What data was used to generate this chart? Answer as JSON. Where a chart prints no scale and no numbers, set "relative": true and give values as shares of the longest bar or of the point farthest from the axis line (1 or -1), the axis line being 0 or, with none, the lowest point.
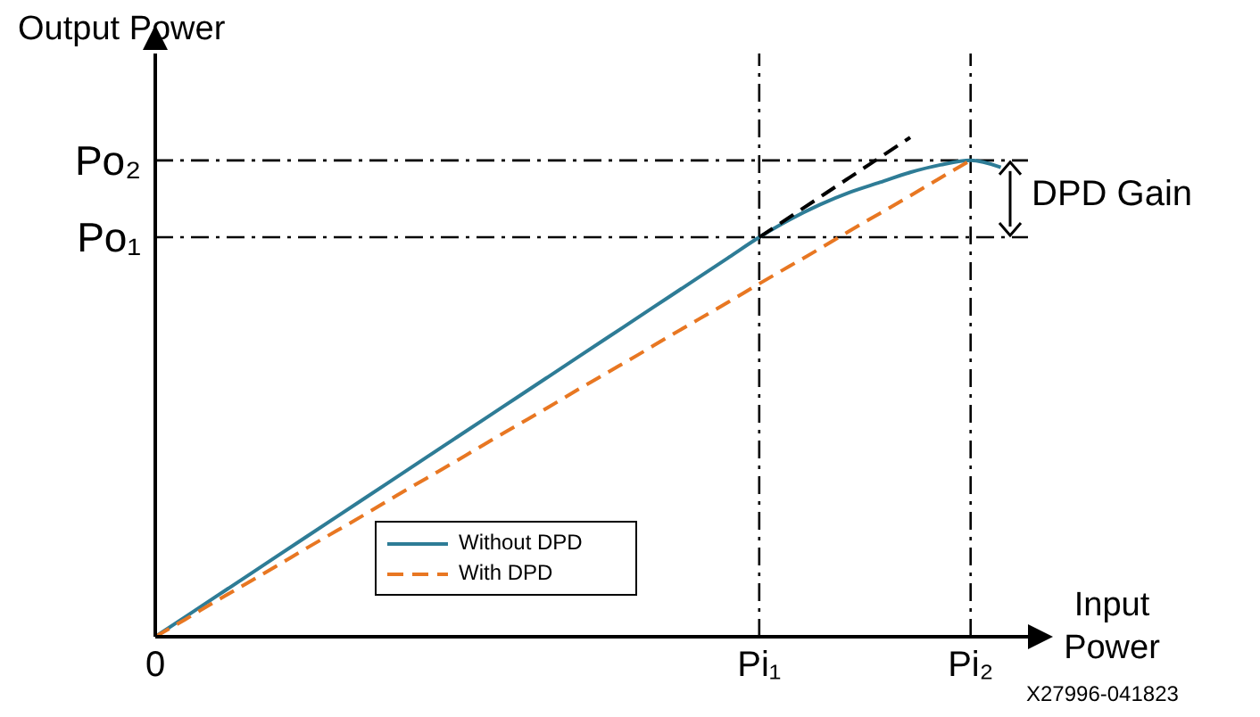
{
  "chart_data": {
    "type": "line",
    "relative": true,
    "xlabel": "Input Power",
    "ylabel": "Output Power",
    "categories": [
      "0",
      null,
      null,
      null,
      null,
      null,
      null,
      null,
      null,
      null,
      null,
      null,
      null,
      null,
      null,
      null,
      null,
      null,
      null,
      null,
      "Pi₁",
      null,
      null,
      null,
      null,
      null,
      null,
      "Pi₂",
      null
    ],
    "series": [
      {
        "name": "Without DPD",
        "color": "#2e7c96",
        "line_style": "solid",
        "values": [
          0,
          0.04,
          0.08,
          0.12,
          0.16,
          0.2,
          0.24,
          0.28,
          0.32,
          0.36,
          0.4,
          0.44,
          0.48,
          0.52,
          0.56,
          0.6,
          0.64,
          0.68,
          0.72,
          0.76,
          0.8,
          0.835,
          0.865,
          0.89,
          0.91,
          0.93,
          0.945,
          0.954,
          0.94
        ]
      },
      {
        "name": "With DPD",
        "color": "#e87722",
        "line_style": "dashed",
        "values": [
          0,
          0.035,
          0.071,
          0.106,
          0.141,
          0.177,
          0.212,
          0.247,
          0.283,
          0.318,
          0.353,
          0.389,
          0.424,
          0.459,
          0.495,
          0.53,
          0.565,
          0.601,
          0.636,
          0.671,
          0.707,
          0.742,
          0.777,
          0.813,
          0.848,
          0.883,
          0.919,
          0.954,
          null
        ]
      },
      {
        "color": "#000000",
        "line_style": "dashed",
        "values": [
          null,
          null,
          null,
          null,
          null,
          null,
          null,
          null,
          null,
          null,
          null,
          null,
          null,
          null,
          null,
          null,
          null,
          null,
          null,
          null,
          0.8,
          0.84,
          0.88,
          0.92,
          0.96,
          1.0,
          null,
          null,
          null
        ]
      }
    ],
    "ref_lines": [
      {
        "axis": "y",
        "value": 0.8,
        "label": "Po₁",
        "color": "#000000",
        "line_style": "dashdot"
      },
      {
        "axis": "y",
        "value": 0.954,
        "label": "Po₂",
        "color": "#000000",
        "line_style": "dashdot"
      },
      {
        "axis": "x",
        "value": "Pi₁",
        "color": "#000000",
        "line_style": "dashdot"
      },
      {
        "axis": "x",
        "value": "Pi₂",
        "color": "#000000",
        "line_style": "dashdot"
      }
    ],
    "annotations": [
      "DPD Gain",
      "X27996-041823"
    ],
    "legend": "bottom",
    "grid": false
  }
}
